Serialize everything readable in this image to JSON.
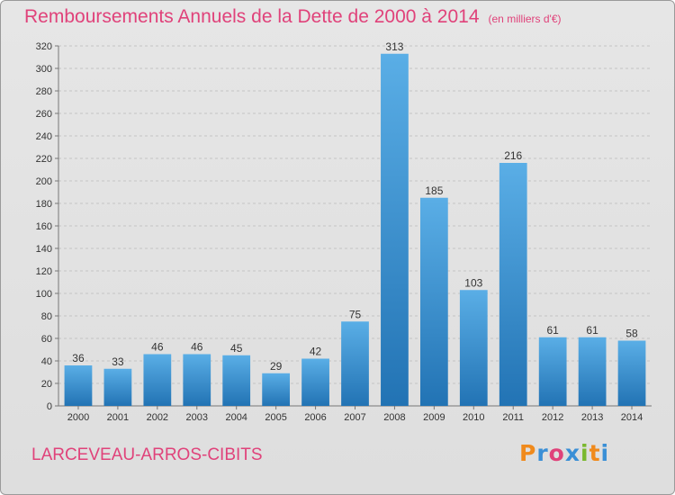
{
  "header": {
    "title": "Remboursements Annuels de la Dette de 2000 à 2014",
    "subtitle": "(en milliers d'€)"
  },
  "footer": {
    "place": "LARCEVEAU-ARROS-CIBITS",
    "logo": "Proxiti"
  },
  "colors": {
    "title": "#e0427a",
    "bar_top": "#5aaee6",
    "bar_bottom": "#2273b4",
    "logo_letters": [
      "#f08a1c",
      "#3a8fd6",
      "#e0427a",
      "#3a8fd6",
      "#7ab82e",
      "#f08a1c",
      "#3a8fd6"
    ]
  },
  "chart_data": {
    "type": "bar",
    "title": "Remboursements Annuels de la Dette de 2000 à 2014",
    "subtitle": "(en milliers d'€)",
    "categories": [
      "2000",
      "2001",
      "2002",
      "2003",
      "2004",
      "2005",
      "2006",
      "2007",
      "2008",
      "2009",
      "2010",
      "2011",
      "2012",
      "2013",
      "2014"
    ],
    "values": [
      36,
      33,
      46,
      46,
      45,
      29,
      42,
      75,
      313,
      185,
      103,
      216,
      61,
      61,
      58
    ],
    "ylim": [
      0,
      320
    ],
    "yticks": [
      0,
      20,
      40,
      60,
      80,
      100,
      120,
      140,
      160,
      180,
      200,
      220,
      240,
      260,
      280,
      300,
      320
    ],
    "grid": true,
    "data_labels": true,
    "legend": "none"
  }
}
